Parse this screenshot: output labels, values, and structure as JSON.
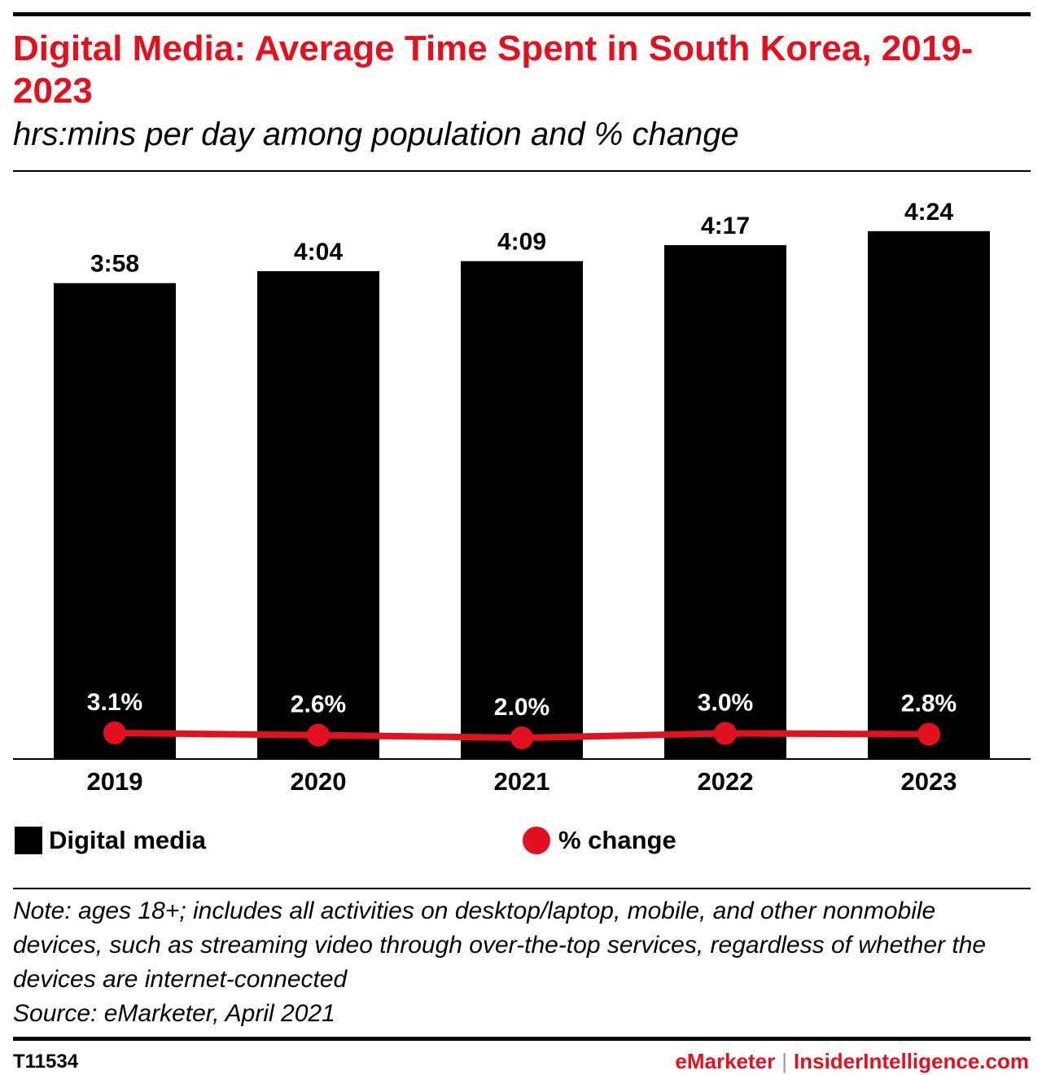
{
  "header": {
    "title": "Digital Media: Average Time Spent in South Korea, 2019-2023",
    "subtitle": "hrs:mins per day among population and % change"
  },
  "chart_data": {
    "type": "bar",
    "categories": [
      "2019",
      "2020",
      "2021",
      "2022",
      "2023"
    ],
    "series": [
      {
        "name": "Digital media",
        "type": "bar",
        "values_minutes": [
          238,
          244,
          249,
          257,
          264
        ],
        "labels": [
          "3:58",
          "4:04",
          "4:09",
          "4:17",
          "4:24"
        ],
        "color": "#000000"
      },
      {
        "name": "% change",
        "type": "line",
        "values": [
          3.1,
          2.6,
          2.0,
          3.0,
          2.8
        ],
        "labels": [
          "3.1%",
          "2.6%",
          "2.0%",
          "3.0%",
          "2.8%"
        ],
        "color": "#e3101f"
      }
    ],
    "ylim_minutes": [
      0,
      290
    ],
    "legend_position": "bottom",
    "grid": false
  },
  "legend": {
    "bar_label": "Digital media",
    "line_label": "% change"
  },
  "note": {
    "text": "Note: ages 18+; includes all activities on desktop/laptop, mobile, and other nonmobile devices, such as streaming video through over-the-top services, regardless of whether the devices are internet-connected",
    "source": "Source: eMarketer, April 2021"
  },
  "footer": {
    "id": "T11534",
    "brand_left": "eMarketer",
    "separator": "|",
    "brand_right": "InsiderIntelligence.com"
  },
  "colors": {
    "accent": "#e3101f",
    "bar": "#000000"
  }
}
